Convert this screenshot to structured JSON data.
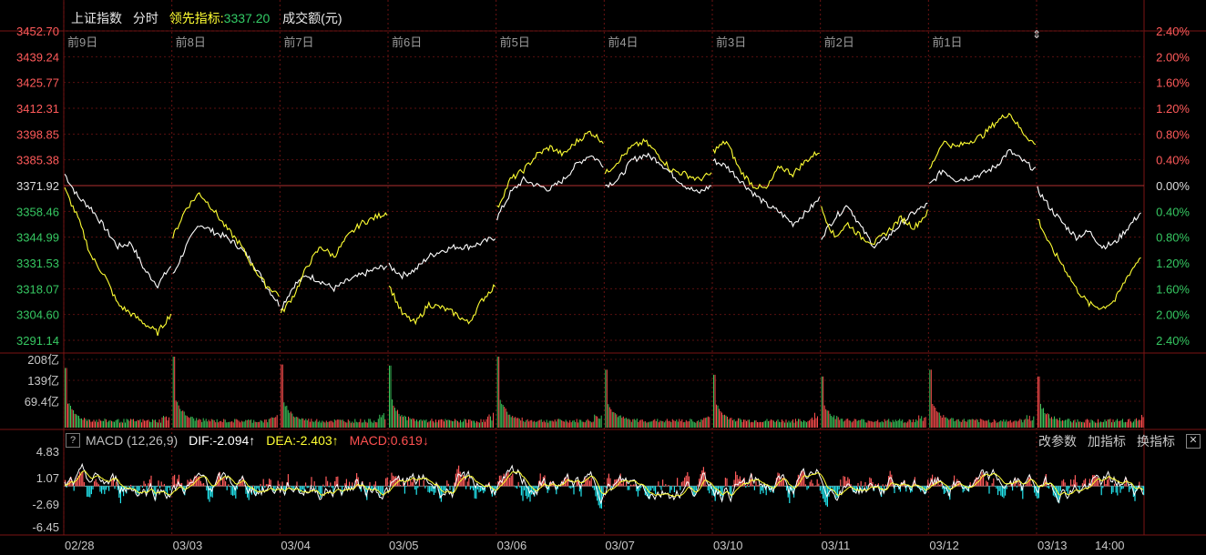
{
  "header": {
    "title": "上证指数",
    "mode": "分时",
    "leading_label": "领先指标:",
    "leading_value": "3337.20",
    "volume_label": "成交额(元)"
  },
  "colors": {
    "up": "#ff4d4d",
    "down": "#33cc66",
    "price_line": "#ffffff",
    "leading_line": "#ffff33",
    "grid": "#8b1a1a",
    "macd_pos": "#ff5a5a",
    "macd_neg": "#22e5ee",
    "vol_up": "#ff4d4d",
    "vol_down": "#39c35a"
  },
  "macd_bar": {
    "help": "?",
    "name": "MACD (12,26,9)",
    "dif": "DIF:-2.094↑",
    "dea": "DEA:-2.403↑",
    "macd": "MACD:0.619↓",
    "btn_params": "改参数",
    "btn_add": "加指标",
    "btn_switch": "换指标",
    "btn_close": "✕"
  },
  "chart_data": {
    "type": "line",
    "title": "上证指数",
    "price_axis": [
      "3452.70",
      "3439.24",
      "3425.77",
      "3412.31",
      "3398.85",
      "3385.38",
      "3371.92",
      "3358.46",
      "3344.99",
      "3331.53",
      "3318.07",
      "3304.60",
      "3291.14"
    ],
    "pct_axis": [
      "2.40%",
      "2.00%",
      "1.60%",
      "1.20%",
      "0.80%",
      "0.40%",
      "0.00%",
      "0.40%",
      "0.80%",
      "1.20%",
      "1.60%",
      "2.00%",
      "2.40%"
    ],
    "ylim": [
      3291.14,
      3452.7
    ],
    "base_close": 3371.92,
    "day_labels": [
      "前9日",
      "前8日",
      "前7日",
      "前6日",
      "前5日",
      "前4日",
      "前3日",
      "前2日",
      "前1日"
    ],
    "x_dates": [
      "02/28",
      "03/03",
      "03/04",
      "03/05",
      "03/06",
      "03/07",
      "03/10",
      "03/11",
      "03/12",
      "03/13",
      "14:00"
    ],
    "volume_axis": [
      "208亿",
      "139亿",
      "69.4亿"
    ],
    "macd_axis": [
      "4.83",
      "1.07",
      "-2.69",
      "-6.45"
    ],
    "series": [
      {
        "name": "上证指数",
        "days": [
          [
            3378,
            3366,
            3360,
            3350,
            3340,
            3342,
            3328,
            3320,
            3330
          ],
          [
            3325,
            3340,
            3352,
            3348,
            3345,
            3340,
            3332,
            3320,
            3310
          ],
          [
            3308,
            3320,
            3325,
            3322,
            3318,
            3322,
            3325,
            3328,
            3330
          ],
          [
            3330,
            3325,
            3328,
            3335,
            3338,
            3340,
            3340,
            3342,
            3345
          ],
          [
            3355,
            3368,
            3375,
            3372,
            3370,
            3375,
            3383,
            3388,
            3383
          ],
          [
            3372,
            3375,
            3385,
            3388,
            3385,
            3378,
            3372,
            3368,
            3372
          ],
          [
            3385,
            3382,
            3375,
            3368,
            3362,
            3358,
            3352,
            3358,
            3365
          ],
          [
            3345,
            3355,
            3362,
            3350,
            3340,
            3345,
            3352,
            3358,
            3362
          ],
          [
            3372,
            3380,
            3375,
            3376,
            3378,
            3382,
            3390,
            3385,
            3380
          ],
          [
            3370,
            3360,
            3352,
            3345,
            3348,
            3340,
            3342,
            3350,
            3358
          ]
        ]
      },
      {
        "name": "领先指标",
        "days": [
          [
            3370,
            3355,
            3335,
            3325,
            3310,
            3305,
            3300,
            3295,
            3305
          ],
          [
            3345,
            3360,
            3368,
            3360,
            3350,
            3342,
            3330,
            3320,
            3315
          ],
          [
            3305,
            3315,
            3330,
            3340,
            3335,
            3345,
            3352,
            3355,
            3358
          ],
          [
            3320,
            3305,
            3300,
            3310,
            3308,
            3305,
            3300,
            3312,
            3320
          ],
          [
            3360,
            3375,
            3380,
            3388,
            3392,
            3388,
            3395,
            3400,
            3395
          ],
          [
            3378,
            3385,
            3392,
            3395,
            3388,
            3380,
            3378,
            3375,
            3378
          ],
          [
            3390,
            3395,
            3380,
            3372,
            3370,
            3382,
            3378,
            3385,
            3390
          ],
          [
            3360,
            3345,
            3352,
            3345,
            3342,
            3348,
            3355,
            3350,
            3358
          ],
          [
            3380,
            3395,
            3392,
            3395,
            3398,
            3405,
            3410,
            3400,
            3393
          ],
          [
            3355,
            3340,
            3330,
            3318,
            3310,
            3308,
            3312,
            3325,
            3335
          ]
        ]
      }
    ],
    "volume_peaks": [
      175,
      208,
      185,
      182,
      208,
      170,
      155,
      150,
      170,
      150
    ],
    "macd_range": [
      -6.45,
      4.83
    ]
  }
}
